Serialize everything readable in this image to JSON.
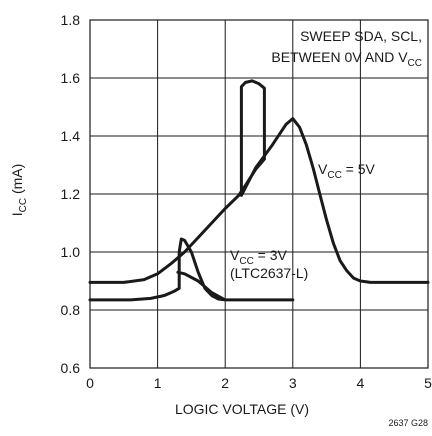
{
  "chart_data": {
    "type": "line",
    "xlabel": "LOGIC VOLTAGE (V)",
    "ylabel": {
      "main": "I",
      "sub": "CC",
      "rest": " (mA)"
    },
    "xlim": [
      0,
      5
    ],
    "ylim": [
      0.6,
      1.8
    ],
    "x_ticks": [
      "0",
      "1",
      "2",
      "3",
      "4",
      "5"
    ],
    "y_ticks": [
      "0.6",
      "0.8",
      "1.0",
      "1.2",
      "1.4",
      "1.6",
      "1.8"
    ],
    "grid": true,
    "annotations": {
      "sweep_line1": "SWEEP SDA, SCL,",
      "sweep_line2_prefix": "BETWEEN 0V AND V",
      "sweep_line2_sub": "CC",
      "vcc5_prefix": "V",
      "vcc5_sub": "CC",
      "vcc5_suffix": " = 5V",
      "vcc3_prefix": "V",
      "vcc3_sub": "CC",
      "vcc3_suffix": " = 3V",
      "vcc3_part": "(LTC2637-L)"
    },
    "figure_id": "2637 G28",
    "series": [
      {
        "name": "VCC = 5V",
        "points": [
          [
            0,
            0.895
          ],
          [
            0.5,
            0.895
          ],
          [
            0.8,
            0.905
          ],
          [
            1.0,
            0.925
          ],
          [
            1.2,
            0.96
          ],
          [
            1.4,
            1.0
          ],
          [
            1.6,
            1.05
          ],
          [
            1.8,
            1.1
          ],
          [
            2.0,
            1.15
          ],
          [
            2.2,
            1.195
          ],
          [
            2.3,
            1.23
          ],
          [
            2.45,
            1.285
          ],
          [
            2.58,
            1.32
          ],
          [
            2.58,
            1.565
          ],
          [
            2.5,
            1.58
          ],
          [
            2.4,
            1.59
          ],
          [
            2.3,
            1.585
          ],
          [
            2.24,
            1.57
          ],
          [
            2.24,
            1.195
          ],
          [
            2.45,
            1.29
          ],
          [
            2.7,
            1.37
          ],
          [
            2.9,
            1.44
          ],
          [
            3.0,
            1.46
          ],
          [
            3.1,
            1.43
          ],
          [
            3.2,
            1.37
          ],
          [
            3.3,
            1.29
          ],
          [
            3.4,
            1.2
          ],
          [
            3.5,
            1.11
          ],
          [
            3.6,
            1.03
          ],
          [
            3.7,
            0.97
          ],
          [
            3.8,
            0.935
          ],
          [
            3.9,
            0.91
          ],
          [
            4.0,
            0.9
          ],
          [
            4.15,
            0.895
          ],
          [
            5.0,
            0.895
          ]
        ]
      },
      {
        "name": "VCC = 3V (LTC2637-L)",
        "points": [
          [
            0,
            0.835
          ],
          [
            0.6,
            0.835
          ],
          [
            0.9,
            0.84
          ],
          [
            1.1,
            0.85
          ],
          [
            1.25,
            0.865
          ],
          [
            1.32,
            0.875
          ],
          [
            1.32,
            1.0
          ],
          [
            1.35,
            1.045
          ],
          [
            1.4,
            1.04
          ],
          [
            1.5,
            1.0
          ],
          [
            1.6,
            0.93
          ],
          [
            1.7,
            0.875
          ],
          [
            1.8,
            0.85
          ],
          [
            1.9,
            0.838
          ],
          [
            2.0,
            0.835
          ],
          [
            2.5,
            0.835
          ],
          [
            3.0,
            0.835
          ],
          [
            2.0,
            0.835
          ],
          [
            1.8,
            0.86
          ],
          [
            1.6,
            0.9
          ],
          [
            1.4,
            0.925
          ],
          [
            1.3,
            0.93
          ]
        ]
      }
    ]
  }
}
